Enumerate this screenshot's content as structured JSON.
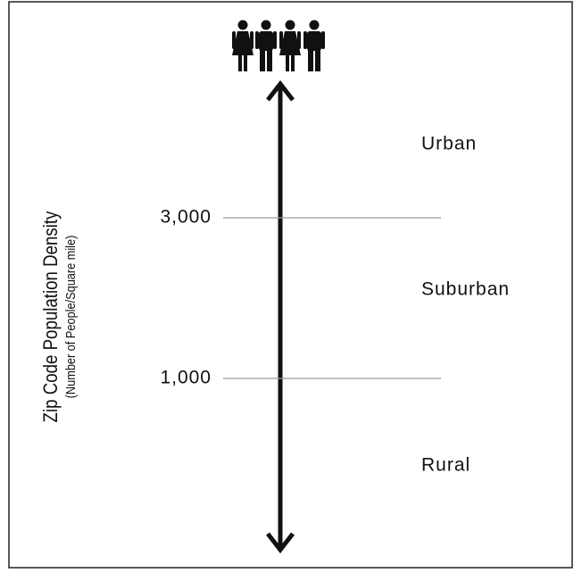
{
  "axis": {
    "title": "Zip Code Population Density",
    "subtitle": "(Number of People/Square mile)"
  },
  "thresholds": [
    "3,000",
    "1,000"
  ],
  "zones": [
    "Urban",
    "Suburban",
    "Rural"
  ]
}
